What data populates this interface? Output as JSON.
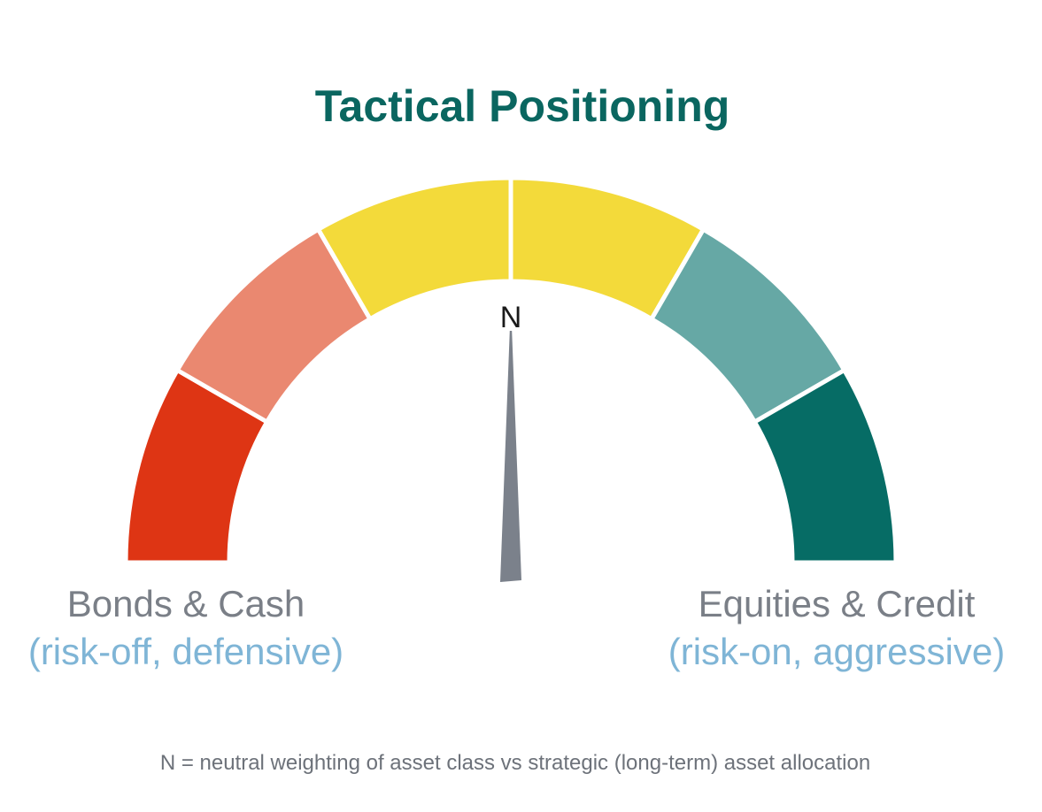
{
  "chart_data": {
    "type": "gauge",
    "title": "Tactical Positioning",
    "segments": [
      {
        "color": "#de3514"
      },
      {
        "color": "#ea8870"
      },
      {
        "color": "#f3da3a"
      },
      {
        "color": "#f3da3a"
      },
      {
        "color": "#66a8a5"
      },
      {
        "color": "#066c65"
      }
    ],
    "center_label": "N",
    "needle_position": 0.5,
    "needle_color": "#7b818b",
    "left_label": "Bonds & Cash",
    "left_sublabel": "(risk-off, defensive)",
    "right_label": "Equities & Credit",
    "right_sublabel": "(risk-on, aggressive)",
    "footnote": "N = neutral weighting of asset class vs strategic (long-term) asset allocation"
  }
}
